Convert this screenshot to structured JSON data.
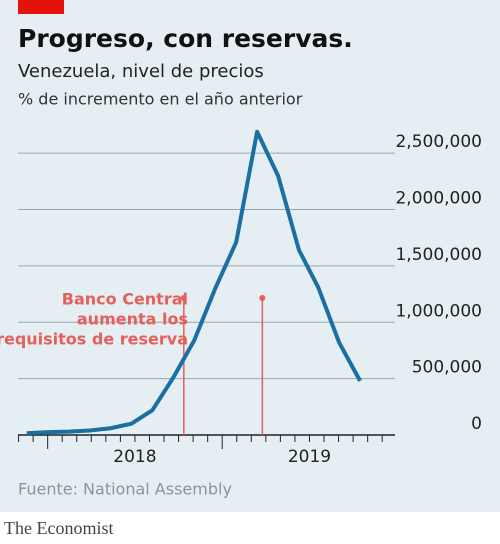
{
  "chart_data": {
    "type": "line",
    "title": "Progreso, con reservas.",
    "subtitle": "Venezuela, nivel de precios",
    "unit_label": "% de incremento en el año anterior",
    "source": "Fuente: National Assembly",
    "brand": "The Economist",
    "x": [
      2017.88,
      2018.0,
      2018.12,
      2018.24,
      2018.36,
      2018.48,
      2018.6,
      2018.72,
      2018.84,
      2018.96,
      2019.08,
      2019.2,
      2019.32,
      2019.44,
      2019.55,
      2019.67,
      2019.79
    ],
    "series": [
      {
        "name": "Venezuela",
        "color": "#1a6fa3",
        "values": [
          15000,
          25000,
          30000,
          40000,
          60000,
          100000,
          220000,
          510000,
          840000,
          1300000,
          1710000,
          2690000,
          2300000,
          1640000,
          1310000,
          820000,
          480000
        ]
      }
    ],
    "xlim": [
      2017.83,
      2019.99
    ],
    "xticks": [
      {
        "value": 2018.5,
        "label": "2018"
      },
      {
        "value": 2019.5,
        "label": "2019"
      }
    ],
    "ylim": [
      0,
      2750000
    ],
    "yticks": [
      0,
      {
        "value": 500000,
        "label": "500,000"
      },
      {
        "value": 1000000,
        "label": "1,000,000"
      },
      {
        "value": 1500000,
        "label": "1,500,000"
      },
      {
        "value": 2000000,
        "label": "2,000,000"
      },
      {
        "value": 2500000,
        "label": "2,500,000"
      }
    ],
    "grid": true,
    "annotation": {
      "lines": [
        "Banco Central",
        "aumenta los",
        "requisitos de reserva"
      ],
      "color": "#e5605a",
      "x": [
        2018.78,
        2019.23
      ]
    }
  }
}
